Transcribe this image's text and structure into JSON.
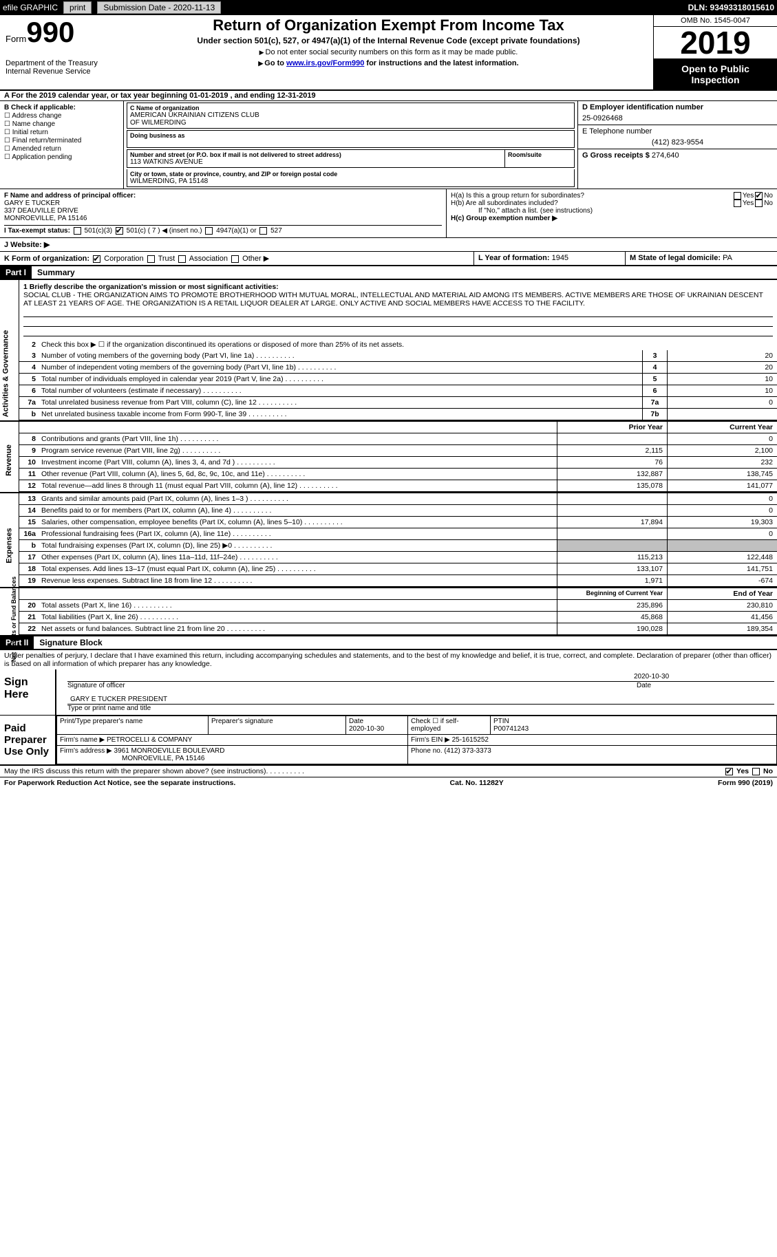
{
  "topbar": {
    "efile": "efile GRAPHIC",
    "print": "print",
    "subdate_lbl": "Submission Date - ",
    "subdate": "2020-11-13",
    "dln": "DLN: 93493318015610"
  },
  "header": {
    "form_word": "Form",
    "form_num": "990",
    "dept": "Department of the Treasury\nInternal Revenue Service",
    "title": "Return of Organization Exempt From Income Tax",
    "sub": "Under section 501(c), 527, or 4947(a)(1) of the Internal Revenue Code (except private foundations)",
    "note1": "Do not enter social security numbers on this form as it may be made public.",
    "note2_pre": "Go to ",
    "note2_link": "www.irs.gov/Form990",
    "note2_post": " for instructions and the latest information.",
    "omb": "OMB No. 1545-0047",
    "year": "2019",
    "inspect": "Open to Public Inspection"
  },
  "row_a": "A   For the 2019 calendar year, or tax year beginning 01-01-2019    , and ending 12-31-2019",
  "box_b": {
    "hdr": "B Check if applicable:",
    "items": [
      "Address change",
      "Name change",
      "Initial return",
      "Final return/terminated",
      "Amended return",
      "Application pending"
    ]
  },
  "box_c": {
    "lbl": "C Name of organization",
    "name": "AMERICAN UKRAINIAN CITIZENS CLUB\nOF WILMERDING",
    "dba_lbl": "Doing business as",
    "addr_lbl": "Number and street (or P.O. box if mail is not delivered to street address)",
    "room_lbl": "Room/suite",
    "addr": "113 WATKINS AVENUE",
    "city_lbl": "City or town, state or province, country, and ZIP or foreign postal code",
    "city": "WILMERDING, PA  15148"
  },
  "box_d": {
    "lbl": "D Employer identification number",
    "val": "25-0926468"
  },
  "box_e": {
    "lbl": "E Telephone number",
    "val": "(412) 823-9554"
  },
  "box_g": {
    "lbl": "G Gross receipts $",
    "val": "274,640"
  },
  "box_f": {
    "lbl": "F Name and address of principal officer:",
    "name": "GARY E TUCKER",
    "addr1": "337 DEAUVILLE DRIVE",
    "addr2": "MONROEVILLE, PA  15146"
  },
  "box_h": {
    "a": "H(a)  Is this a group return for subordinates?",
    "b": "H(b)  Are all subordinates included?",
    "b_note": "If \"No,\" attach a list. (see instructions)",
    "c": "H(c)  Group exemption number ▶",
    "yes": "Yes",
    "no": "No"
  },
  "tax_status": {
    "lbl": "I    Tax-exempt status:",
    "opts": [
      "501(c)(3)",
      "501(c) ( 7 ) ◀ (insert no.)",
      "4947(a)(1) or",
      "527"
    ]
  },
  "website": "J   Website: ▶",
  "row_k": {
    "k": "K Form of organization:",
    "opts": [
      "Corporation",
      "Trust",
      "Association",
      "Other ▶"
    ],
    "l_lbl": "L Year of formation:",
    "l_val": "1945",
    "m_lbl": "M State of legal domicile:",
    "m_val": "PA"
  },
  "part1": {
    "hdr": "Part I",
    "title": "Summary"
  },
  "mission": {
    "q": "1   Briefly describe the organization's mission or most significant activities:",
    "txt": "SOCIAL CLUB - THE ORGANIZATION AIMS TO PROMOTE BROTHERHOOD WITH MUTUAL MORAL, INTELLECTUAL AND MATERIAL AID AMONG ITS MEMBERS. ACTIVE MEMBERS ARE THOSE OF UKRAINIAN DESCENT AT LEAST 21 YEARS OF AGE. THE ORGANIZATION IS A RETAIL LIQUOR DEALER AT LARGE. ONLY ACTIVE AND SOCIAL MEMBERS HAVE ACCESS TO THE FACILITY."
  },
  "sideLabels": {
    "gov": "Activities & Governance",
    "rev": "Revenue",
    "exp": "Expenses",
    "net": "Net Assets or Fund Balances"
  },
  "lines_gov": [
    {
      "n": "2",
      "t": "Check this box ▶ ☐  if the organization discontinued its operations or disposed of more than 25% of its net assets."
    },
    {
      "n": "3",
      "t": "Number of voting members of the governing body (Part VI, line 1a)",
      "cn": "3",
      "v": "20"
    },
    {
      "n": "4",
      "t": "Number of independent voting members of the governing body (Part VI, line 1b)",
      "cn": "4",
      "v": "20"
    },
    {
      "n": "5",
      "t": "Total number of individuals employed in calendar year 2019 (Part V, line 2a)",
      "cn": "5",
      "v": "10"
    },
    {
      "n": "6",
      "t": "Total number of volunteers (estimate if necessary)",
      "cn": "6",
      "v": "10"
    },
    {
      "n": "7a",
      "t": "Total unrelated business revenue from Part VIII, column (C), line 12",
      "cn": "7a",
      "v": "0"
    },
    {
      "n": "b",
      "t": "Net unrelated business taxable income from Form 990-T, line 39",
      "cn": "7b",
      "v": ""
    }
  ],
  "col_hdrs": {
    "prior": "Prior Year",
    "curr": "Current Year"
  },
  "lines_rev": [
    {
      "n": "8",
      "t": "Contributions and grants (Part VIII, line 1h)",
      "p": "",
      "c": "0"
    },
    {
      "n": "9",
      "t": "Program service revenue (Part VIII, line 2g)",
      "p": "2,115",
      "c": "2,100"
    },
    {
      "n": "10",
      "t": "Investment income (Part VIII, column (A), lines 3, 4, and 7d )",
      "p": "76",
      "c": "232"
    },
    {
      "n": "11",
      "t": "Other revenue (Part VIII, column (A), lines 5, 6d, 8c, 9c, 10c, and 11e)",
      "p": "132,887",
      "c": "138,745"
    },
    {
      "n": "12",
      "t": "Total revenue—add lines 8 through 11 (must equal Part VIII, column (A), line 12)",
      "p": "135,078",
      "c": "141,077"
    }
  ],
  "lines_exp": [
    {
      "n": "13",
      "t": "Grants and similar amounts paid (Part IX, column (A), lines 1–3 )",
      "p": "",
      "c": "0"
    },
    {
      "n": "14",
      "t": "Benefits paid to or for members (Part IX, column (A), line 4)",
      "p": "",
      "c": "0"
    },
    {
      "n": "15",
      "t": "Salaries, other compensation, employee benefits (Part IX, column (A), lines 5–10)",
      "p": "17,894",
      "c": "19,303"
    },
    {
      "n": "16a",
      "t": "Professional fundraising fees (Part IX, column (A), line 11e)",
      "p": "",
      "c": "0"
    },
    {
      "n": "b",
      "t": "Total fundraising expenses (Part IX, column (D), line 25) ▶0",
      "p": "gray",
      "c": "gray"
    },
    {
      "n": "17",
      "t": "Other expenses (Part IX, column (A), lines 11a–11d, 11f–24e)",
      "p": "115,213",
      "c": "122,448"
    },
    {
      "n": "18",
      "t": "Total expenses. Add lines 13–17 (must equal Part IX, column (A), line 25)",
      "p": "133,107",
      "c": "141,751"
    },
    {
      "n": "19",
      "t": "Revenue less expenses. Subtract line 18 from line 12",
      "p": "1,971",
      "c": "-674"
    }
  ],
  "net_hdrs": {
    "beg": "Beginning of Current Year",
    "end": "End of Year"
  },
  "lines_net": [
    {
      "n": "20",
      "t": "Total assets (Part X, line 16)",
      "p": "235,896",
      "c": "230,810"
    },
    {
      "n": "21",
      "t": "Total liabilities (Part X, line 26)",
      "p": "45,868",
      "c": "41,456"
    },
    {
      "n": "22",
      "t": "Net assets or fund balances. Subtract line 21 from line 20",
      "p": "190,028",
      "c": "189,354"
    }
  ],
  "part2": {
    "hdr": "Part II",
    "title": "Signature Block"
  },
  "perjury": "Under penalties of perjury, I declare that I have examined this return, including accompanying schedules and statements, and to the best of my knowledge and belief, it is true, correct, and complete. Declaration of preparer (other than officer) is based on all information of which preparer has any knowledge.",
  "sign": {
    "here": "Sign Here",
    "sig_lbl": "Signature of officer",
    "date_lbl": "Date",
    "date": "2020-10-30",
    "name": "GARY E TUCKER  PRESIDENT",
    "name_lbl": "Type or print name and title"
  },
  "prep": {
    "side": "Paid Preparer Use Only",
    "h1": "Print/Type preparer's name",
    "h2": "Preparer's signature",
    "h3": "Date",
    "h3v": "2020-10-30",
    "h4": "Check ☐ if self-employed",
    "h5": "PTIN",
    "h5v": "P00741243",
    "firm_lbl": "Firm's name    ▶",
    "firm": "PETROCELLI & COMPANY",
    "ein_lbl": "Firm's EIN ▶",
    "ein": "25-1615252",
    "addr_lbl": "Firm's address ▶",
    "addr": "3961 MONROEVILLE BOULEVARD",
    "addr2": "MONROEVILLE, PA  15146",
    "phone_lbl": "Phone no.",
    "phone": "(412) 373-3373"
  },
  "discuss": "May the IRS discuss this return with the preparer shown above? (see instructions)",
  "footer": {
    "left": "For Paperwork Reduction Act Notice, see the separate instructions.",
    "mid": "Cat. No. 11282Y",
    "right": "Form 990 (2019)"
  }
}
